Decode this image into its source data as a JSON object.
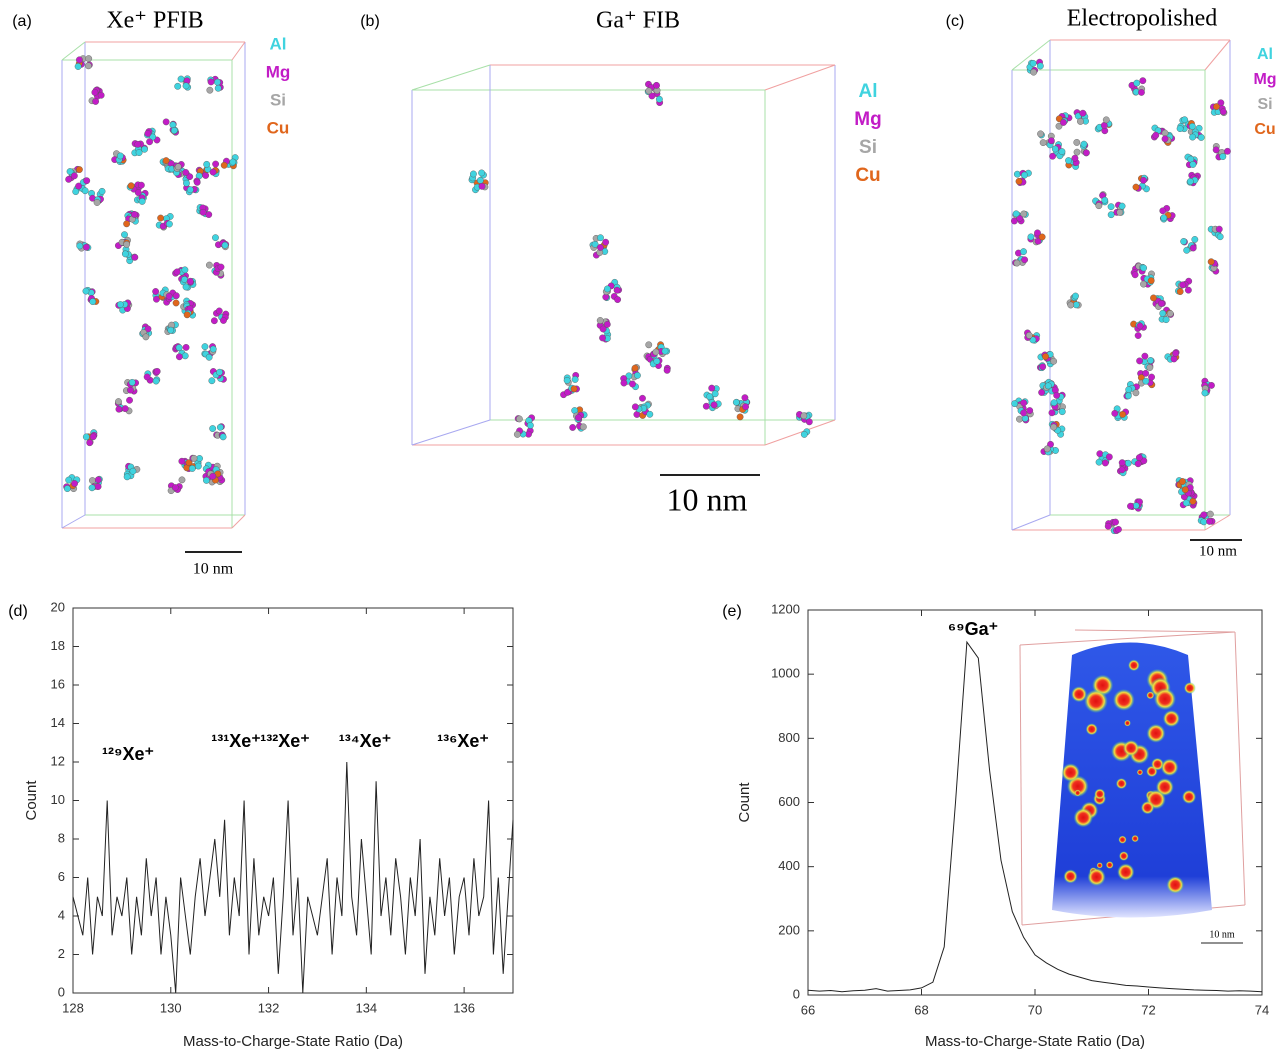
{
  "panels": [
    {
      "label": "(a)",
      "title": "Xe⁺ PFIB",
      "legend": [
        {
          "name": "Al",
          "color": "#3fd3df"
        },
        {
          "name": "Mg",
          "color": "#c21cc6"
        },
        {
          "name": "Si",
          "color": "#a6a6a6"
        },
        {
          "name": "Cu",
          "color": "#e0661c"
        }
      ],
      "scale_bar": "10 nm"
    },
    {
      "label": "(b)",
      "title": "Ga⁺ FIB",
      "legend": [
        {
          "name": "Al",
          "color": "#3fd3df"
        },
        {
          "name": "Mg",
          "color": "#c21cc6"
        },
        {
          "name": "Si",
          "color": "#a6a6a6"
        },
        {
          "name": "Cu",
          "color": "#e0661c"
        }
      ],
      "scale_bar": "10 nm"
    },
    {
      "label": "(c)",
      "title": "Electropolished",
      "legend": [
        {
          "name": "Al",
          "color": "#3fd3df"
        },
        {
          "name": "Mg",
          "color": "#c21cc6"
        },
        {
          "name": "Si",
          "color": "#a6a6a6"
        },
        {
          "name": "Cu",
          "color": "#e0661c"
        }
      ],
      "scale_bar": "10 nm"
    }
  ],
  "chart_data": [
    {
      "type": "line",
      "label": "(d)",
      "xlabel": "Mass-to-Charge-State Ratio (Da)",
      "ylabel": "Count",
      "color": "#222222",
      "annotations": [
        "¹²⁹Xe⁺",
        "¹³¹Xe⁺",
        "¹³²Xe⁺",
        "¹³⁴Xe⁺",
        "¹³⁶Xe⁺"
      ],
      "x": [
        128,
        128.1,
        128.2,
        128.3,
        128.4,
        128.5,
        128.6,
        128.7,
        128.8,
        128.9,
        129,
        129.1,
        129.2,
        129.3,
        129.4,
        129.5,
        129.6,
        129.7,
        129.8,
        129.9,
        130,
        130.1,
        130.2,
        130.3,
        130.4,
        130.5,
        130.6,
        130.7,
        130.8,
        130.9,
        131,
        131.1,
        131.2,
        131.3,
        131.4,
        131.5,
        131.6,
        131.7,
        131.8,
        131.9,
        132,
        132.1,
        132.2,
        132.3,
        132.4,
        132.5,
        132.6,
        132.7,
        132.8,
        132.9,
        133,
        133.1,
        133.2,
        133.3,
        133.4,
        133.5,
        133.6,
        133.7,
        133.8,
        133.9,
        134,
        134.1,
        134.2,
        134.3,
        134.4,
        134.5,
        134.6,
        134.7,
        134.8,
        134.9,
        135,
        135.1,
        135.2,
        135.3,
        135.4,
        135.5,
        135.6,
        135.7,
        135.8,
        135.9,
        136,
        136.1,
        136.2,
        136.3,
        136.4,
        136.5,
        136.6,
        136.7,
        136.8,
        136.9,
        137
      ],
      "values": [
        5,
        4,
        3,
        6,
        2,
        5,
        4,
        10,
        3,
        5,
        4,
        6,
        2,
        5,
        3,
        7,
        4,
        6,
        2,
        5,
        3,
        0,
        6,
        4,
        2,
        5,
        7,
        4,
        6,
        8,
        5,
        9,
        3,
        6,
        4,
        10,
        2,
        7,
        3,
        5,
        4,
        6,
        1,
        5,
        10,
        3,
        6,
        0,
        5,
        4,
        3,
        5,
        7,
        2,
        6,
        4,
        12,
        5,
        3,
        8,
        5,
        2,
        11,
        4,
        6,
        3,
        7,
        5,
        2,
        6,
        4,
        8,
        1,
        5,
        3,
        7,
        4,
        6,
        2,
        5,
        6,
        3,
        7,
        4,
        5,
        10,
        2,
        6,
        1,
        5,
        9
      ],
      "xlim": [
        128,
        137
      ],
      "xticks": [
        128,
        130,
        132,
        134,
        136
      ],
      "ylim": [
        0,
        20
      ],
      "yticks": [
        0,
        2,
        4,
        6,
        8,
        10,
        12,
        14,
        16,
        18,
        20
      ]
    },
    {
      "type": "line",
      "label": "(e)",
      "xlabel": "Mass-to-Charge-State Ratio (Da)",
      "ylabel": "Count",
      "color": "#222222",
      "annotations": [
        "⁶⁹Ga⁺"
      ],
      "inset_scale_label": "10 nm",
      "x": [
        66,
        66.2,
        66.4,
        66.6,
        66.8,
        67,
        67.2,
        67.4,
        67.6,
        67.8,
        68,
        68.2,
        68.4,
        68.6,
        68.8,
        69,
        69.2,
        69.4,
        69.6,
        69.8,
        70,
        70.2,
        70.4,
        70.6,
        70.8,
        71,
        71.2,
        71.4,
        71.6,
        71.8,
        72,
        72.2,
        72.4,
        72.6,
        72.8,
        73,
        73.2,
        73.4,
        73.6,
        73.8,
        74
      ],
      "values": [
        15,
        12,
        14,
        10,
        13,
        15,
        20,
        12,
        14,
        16,
        22,
        40,
        150,
        600,
        1100,
        1050,
        700,
        420,
        260,
        180,
        125,
        100,
        80,
        65,
        55,
        45,
        40,
        35,
        30,
        28,
        25,
        22,
        20,
        18,
        16,
        15,
        14,
        12,
        13,
        12,
        10
      ],
      "xlim": [
        66,
        74
      ],
      "xticks": [
        66,
        68,
        70,
        72,
        74
      ],
      "ylim": [
        0,
        1200
      ],
      "yticks": [
        0,
        200,
        400,
        600,
        800,
        1000,
        1200
      ]
    }
  ]
}
